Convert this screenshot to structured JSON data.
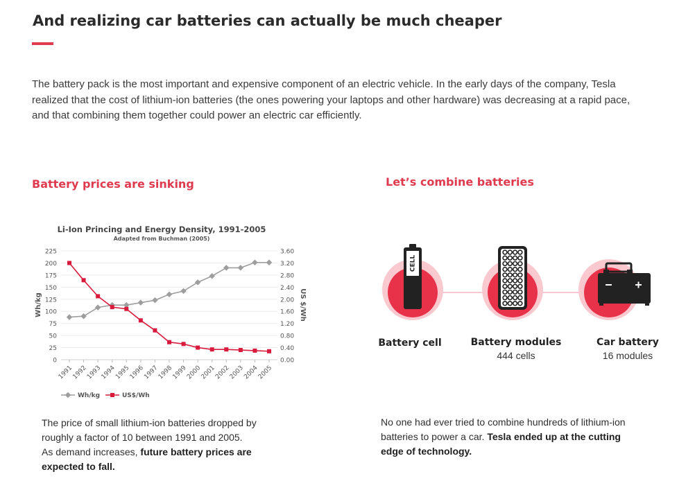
{
  "page": {
    "title": "And realizing car batteries can actually be much cheaper",
    "intro": "The battery pack is the most important and expensive component of an electric vehicle. In the early days of the company, Tesla realized that the cost of lithium-ion batteries (the ones powering your laptops and other hardware) was decreasing at a rapid pace, and that combining them together could power an electric car efficiently.",
    "accent_color": "#e03a4f"
  },
  "left": {
    "heading": "Battery  prices are sinking",
    "caption_part1": "The price of small lithium-ion batteries dropped by roughly a factor of 10 between 1991 and 2005.",
    "caption_part2": "As demand increases, ",
    "caption_bold": "future battery prices are expected to  fall."
  },
  "right": {
    "heading": "Let’s combine batteries",
    "nodes": [
      {
        "name": "battery-cell",
        "label": "Battery cell",
        "sub": "",
        "icon": "battery-cell-icon",
        "icon_text": "CELL"
      },
      {
        "name": "battery-modules",
        "label": "Battery modules",
        "sub": "444 cells",
        "icon": "battery-module-icon"
      },
      {
        "name": "car-battery",
        "label": "Car battery",
        "sub": "16 modules",
        "icon": "car-battery-icon"
      }
    ],
    "caption_part1": "No one had ever tried to combine hundreds of lithium-ion batteries to power a car. ",
    "caption_bold": "Tesla ended up at the cutting edge of technology."
  },
  "chart_data": {
    "type": "line",
    "title": "Li-Ion Princing and Energy Density, 1991-2005",
    "subtitle": "Adapted from Buchman (2005)",
    "x": [
      "1991",
      "1992",
      "1993",
      "1994",
      "1995",
      "1996",
      "1997",
      "1998",
      "1999",
      "2000",
      "2001",
      "2002",
      "2003",
      "2004",
      "2005"
    ],
    "ylabel": "Wh/kg",
    "y2label": "US $/Wh",
    "ylim": [
      0,
      225
    ],
    "y2lim": [
      0,
      3.6
    ],
    "yticks": [
      "225",
      "200",
      "175",
      "150",
      "125",
      "100",
      "75",
      "50",
      "25",
      "0"
    ],
    "y2ticks": [
      "3.60",
      "3.20",
      "2.80",
      "2.40",
      "2.00",
      "1.60",
      "1.20",
      "0.80",
      "0.40",
      "0.00"
    ],
    "grid": true,
    "legend": "bottom-left",
    "series": [
      {
        "name": "Wh/kg",
        "axis": "left",
        "color": "#9e9e9e",
        "marker": "diamond",
        "values": [
          88,
          90,
          108,
          113,
          113,
          118,
          123,
          135,
          142,
          160,
          173,
          190,
          190,
          201,
          201
        ]
      },
      {
        "name": "US$/Wh",
        "axis": "right",
        "color": "#d81b3c",
        "marker": "square",
        "values": [
          3.2,
          2.63,
          2.1,
          1.74,
          1.68,
          1.3,
          0.97,
          0.58,
          0.52,
          0.4,
          0.34,
          0.34,
          0.32,
          0.3,
          0.28
        ]
      }
    ]
  }
}
